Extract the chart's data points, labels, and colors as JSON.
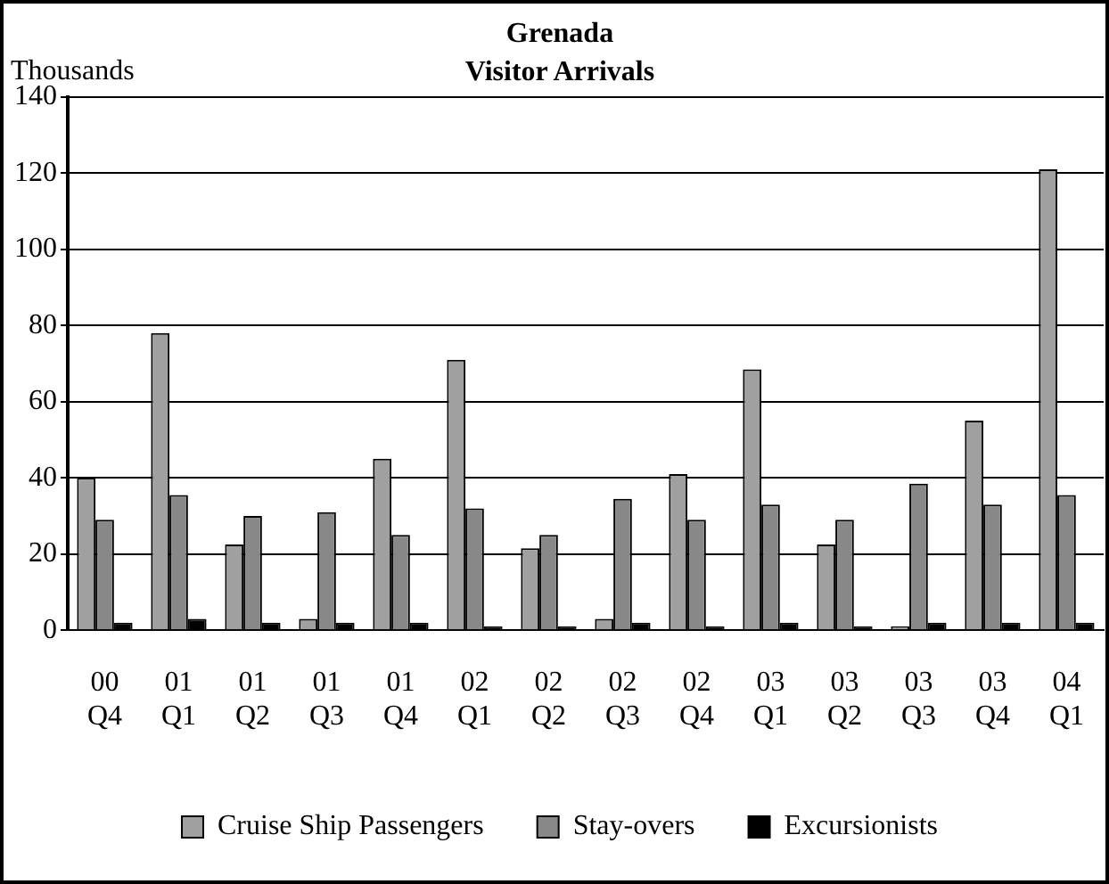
{
  "chart_data": {
    "type": "bar",
    "title": "Grenada",
    "subtitle": "Visitor Arrivals",
    "ylabel": "Thousands",
    "categories": [
      "00 Q4",
      "01 Q1",
      "01 Q2",
      "01 Q3",
      "01 Q4",
      "02 Q1",
      "02 Q2",
      "02 Q3",
      "02 Q4",
      "03 Q1",
      "03 Q2",
      "03 Q3",
      "03 Q4",
      "04 Q1"
    ],
    "series": [
      {
        "name": "Cruise Ship Passengers",
        "color": "#a0a0a0",
        "values": [
          40,
          78,
          22.5,
          3,
          45,
          71,
          21.5,
          3,
          41,
          68.5,
          22.5,
          1,
          55,
          121
        ]
      },
      {
        "name": "Stay-overs",
        "color": "#888888",
        "values": [
          29,
          35.5,
          30,
          31,
          25,
          32,
          25,
          34.5,
          29,
          33,
          29,
          38.5,
          33,
          35.5
        ]
      },
      {
        "name": "Excursionists",
        "color": "#000000",
        "values": [
          2,
          3,
          2,
          2,
          2,
          1,
          1,
          2,
          1,
          2,
          1,
          2,
          2,
          2
        ]
      }
    ],
    "ylim": [
      0,
      140
    ],
    "yticks": [
      0,
      20,
      40,
      60,
      80,
      100,
      120,
      140
    ],
    "grid": "y",
    "legend": "bottom"
  }
}
